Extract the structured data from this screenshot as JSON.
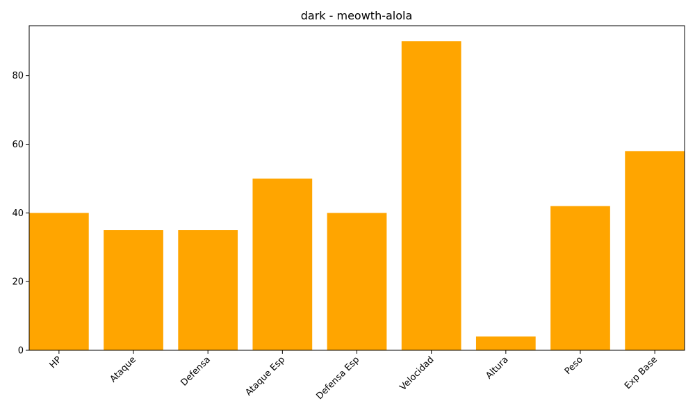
{
  "chart_data": {
    "type": "bar",
    "title": "dark - meowth-alola",
    "xlabel": "",
    "ylabel": "",
    "categories": [
      "HP",
      "Ataque",
      "Defensa",
      "Ataque Esp",
      "Defensa Esp",
      "Velocidad",
      "Altura",
      "Peso",
      "Exp Base"
    ],
    "values": [
      40,
      35,
      35,
      50,
      40,
      90,
      4,
      42,
      58
    ],
    "ylim": [
      0,
      94.5
    ],
    "yticks": [
      0,
      20,
      40,
      60,
      80
    ],
    "bar_color": "#ffa500",
    "grid": false,
    "legend": "none"
  }
}
